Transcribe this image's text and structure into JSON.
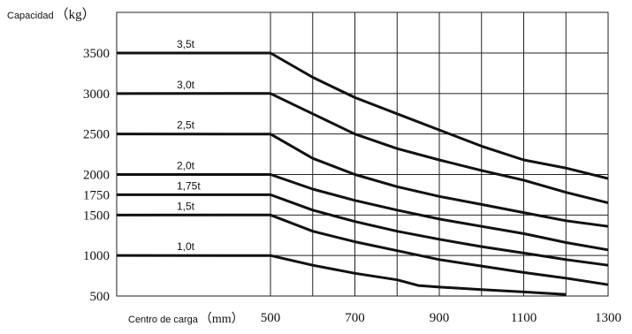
{
  "chart_data": {
    "type": "line",
    "ylabel": "Capacidad",
    "ylabel_unit": "（kg）",
    "xlabel": "Centro de carga",
    "xlabel_unit": "（mm）",
    "y_ticks": [
      500,
      1000,
      1500,
      1750,
      2000,
      2500,
      3000,
      3500
    ],
    "x_ticks": [
      500,
      700,
      900,
      1100,
      1300
    ],
    "xlim": [
      500,
      1300
    ],
    "ylim": [
      500,
      3800
    ],
    "x_flat_start": 500,
    "grid": true,
    "series": [
      {
        "name": "3,5t",
        "flat": 3500,
        "points": [
          [
            500,
            3500
          ],
          [
            600,
            3200
          ],
          [
            700,
            2950
          ],
          [
            800,
            2750
          ],
          [
            900,
            2550
          ],
          [
            1000,
            2350
          ],
          [
            1100,
            2180
          ],
          [
            1200,
            2080
          ],
          [
            1300,
            1950
          ]
        ]
      },
      {
        "name": "3,0t",
        "flat": 3000,
        "points": [
          [
            500,
            3000
          ],
          [
            600,
            2750
          ],
          [
            700,
            2500
          ],
          [
            800,
            2320
          ],
          [
            900,
            2180
          ],
          [
            1000,
            2050
          ],
          [
            1100,
            1930
          ],
          [
            1200,
            1780
          ],
          [
            1300,
            1650
          ]
        ]
      },
      {
        "name": "2,5t",
        "flat": 2500,
        "points": [
          [
            500,
            2500
          ],
          [
            600,
            2200
          ],
          [
            700,
            2000
          ],
          [
            800,
            1850
          ],
          [
            900,
            1730
          ],
          [
            1000,
            1630
          ],
          [
            1100,
            1530
          ],
          [
            1200,
            1430
          ],
          [
            1300,
            1360
          ]
        ]
      },
      {
        "name": "2,0t",
        "flat": 2000,
        "points": [
          [
            500,
            2000
          ],
          [
            600,
            1820
          ],
          [
            700,
            1680
          ],
          [
            800,
            1560
          ],
          [
            900,
            1450
          ],
          [
            1000,
            1360
          ],
          [
            1100,
            1270
          ],
          [
            1200,
            1160
          ],
          [
            1300,
            1070
          ]
        ]
      },
      {
        "name": "1,75t",
        "flat": 1750,
        "points": [
          [
            500,
            1750
          ],
          [
            600,
            1560
          ],
          [
            700,
            1420
          ],
          [
            800,
            1300
          ],
          [
            900,
            1200
          ],
          [
            1000,
            1110
          ],
          [
            1100,
            1030
          ],
          [
            1200,
            950
          ],
          [
            1300,
            880
          ]
        ]
      },
      {
        "name": "1,5t",
        "flat": 1500,
        "points": [
          [
            500,
            1500
          ],
          [
            600,
            1300
          ],
          [
            700,
            1170
          ],
          [
            800,
            1060
          ],
          [
            900,
            950
          ],
          [
            1000,
            870
          ],
          [
            1100,
            790
          ],
          [
            1200,
            720
          ],
          [
            1300,
            640
          ]
        ]
      },
      {
        "name": "1,0t",
        "flat": 1000,
        "points": [
          [
            500,
            1000
          ],
          [
            600,
            880
          ],
          [
            700,
            780
          ],
          [
            800,
            700
          ],
          [
            850,
            630
          ],
          [
            900,
            610
          ],
          [
            1000,
            580
          ],
          [
            1100,
            550
          ],
          [
            1200,
            520
          ]
        ]
      }
    ]
  }
}
